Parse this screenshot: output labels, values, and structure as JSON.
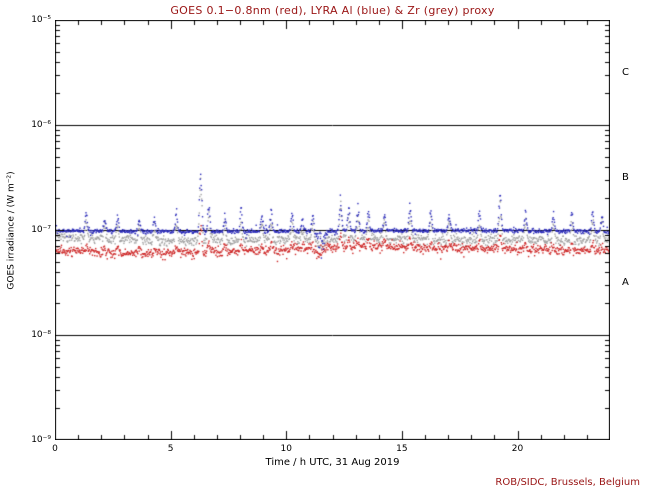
{
  "footer": {
    "text": "ROB/SIDC, Brussels, Belgium"
  },
  "colors": {
    "title_text": "#9a1515",
    "footer_text": "#9a1515",
    "axis": "#000000",
    "goes_red": "#cc2222",
    "lyra_al_blue": "#2929b8",
    "lyra_zr_grey": "#a0a0a0"
  },
  "chart_data": {
    "type": "scatter",
    "title": "GOES 0.1−0.8nm (red), LYRA Al (blue) & Zr (grey) proxy",
    "xlabel": "Time / h UTC, 31 Aug 2019",
    "ylabel": "GOES irradiance / (W m⁻²)",
    "xlim": [
      0,
      24
    ],
    "ylim_log10": [
      -9,
      -5
    ],
    "grid": false,
    "legend": "encoded in title colors",
    "x_major_ticks": [
      {
        "value": 0,
        "label": "0"
      },
      {
        "value": 5,
        "label": "5"
      },
      {
        "value": 10,
        "label": "10"
      },
      {
        "value": 15,
        "label": "15"
      },
      {
        "value": 20,
        "label": "20"
      }
    ],
    "y_ticks": [
      {
        "value": 1e-05,
        "label": "10⁻⁵"
      },
      {
        "value": 1e-06,
        "label": "10⁻⁶"
      },
      {
        "value": 1e-07,
        "label": "10⁻⁷"
      },
      {
        "value": 1e-08,
        "label": "10⁻⁸"
      },
      {
        "value": 1e-09,
        "label": "10⁻⁹"
      }
    ],
    "hlines": [
      1e-06,
      1e-07,
      1e-08
    ],
    "class_labels": [
      {
        "label": "C",
        "value": 3.16e-06
      },
      {
        "label": "B",
        "value": 3.16e-07
      },
      {
        "label": "A",
        "value": 3.16e-08
      }
    ],
    "spike_width_h": 0.06,
    "spikes": [
      {
        "t": 1.35,
        "peak": 1.5e-07
      },
      {
        "t": 2.15,
        "peak": 1.35e-07
      },
      {
        "t": 2.7,
        "peak": 1.45e-07
      },
      {
        "t": 3.65,
        "peak": 1.3e-07
      },
      {
        "t": 4.3,
        "peak": 1.4e-07
      },
      {
        "t": 5.25,
        "peak": 1.55e-07
      },
      {
        "t": 6.3,
        "peak": 3.7e-07
      },
      {
        "t": 6.65,
        "peak": 1.9e-07
      },
      {
        "t": 7.35,
        "peak": 1.5e-07
      },
      {
        "t": 8.05,
        "peak": 1.7e-07
      },
      {
        "t": 8.95,
        "peak": 1.5e-07
      },
      {
        "t": 9.35,
        "peak": 1.65e-07
      },
      {
        "t": 10.25,
        "peak": 1.55e-07
      },
      {
        "t": 10.7,
        "peak": 1.35e-07
      },
      {
        "t": 11.15,
        "peak": 1.5e-07
      },
      {
        "t": 12.35,
        "peak": 2.2e-07
      },
      {
        "t": 12.7,
        "peak": 1.7e-07
      },
      {
        "t": 13.1,
        "peak": 1.75e-07
      },
      {
        "t": 13.55,
        "peak": 1.6e-07
      },
      {
        "t": 14.25,
        "peak": 1.5e-07
      },
      {
        "t": 15.35,
        "peak": 1.85e-07
      },
      {
        "t": 16.25,
        "peak": 1.6e-07
      },
      {
        "t": 17.05,
        "peak": 1.5e-07
      },
      {
        "t": 18.35,
        "peak": 1.55e-07
      },
      {
        "t": 19.25,
        "peak": 2.25e-07
      },
      {
        "t": 20.35,
        "peak": 1.55e-07
      },
      {
        "t": 21.55,
        "peak": 1.5e-07
      },
      {
        "t": 22.35,
        "peak": 1.6e-07
      },
      {
        "t": 23.25,
        "peak": 1.65e-07
      },
      {
        "t": 23.65,
        "peak": 1.5e-07
      }
    ],
    "series": [
      {
        "name": "LYRA Zr proxy",
        "color": "#a0a0a0",
        "noise": 0.055,
        "spike_response": 0.85,
        "baseline": [
          [
            0,
            8.6e-08
          ],
          [
            2,
            8.2e-08
          ],
          [
            5,
            7.9e-08
          ],
          [
            9,
            7.9e-08
          ],
          [
            13,
            8.3e-08
          ],
          [
            17,
            8.1e-08
          ],
          [
            21,
            8e-08
          ],
          [
            24,
            7.9e-08
          ]
        ],
        "dips": [
          {
            "t": 11.5,
            "w": 0.2,
            "depth": 0.2
          }
        ]
      },
      {
        "name": "GOES 0.1-0.8nm",
        "color": "#cc2222",
        "noise": 0.05,
        "spike_response": 0.2,
        "baseline": [
          [
            0,
            6.4e-08
          ],
          [
            3,
            6e-08
          ],
          [
            6,
            6.1e-08
          ],
          [
            9,
            6.3e-08
          ],
          [
            12,
            6.8e-08
          ],
          [
            13.5,
            7e-08
          ],
          [
            16,
            6.7e-08
          ],
          [
            20,
            6.6e-08
          ],
          [
            24,
            6.3e-08
          ]
        ],
        "dips": [
          {
            "t": 11.4,
            "w": 0.3,
            "depth": 0.18
          }
        ]
      },
      {
        "name": "LYRA Al proxy",
        "color": "#2929b8",
        "noise": 0.022,
        "spike_response": 1.0,
        "baseline": [
          [
            0,
            9.8e-08
          ],
          [
            6,
            9.6e-08
          ],
          [
            12,
            9.8e-08
          ],
          [
            18,
            9.9e-08
          ],
          [
            24,
            9.6e-08
          ]
        ],
        "dips": [
          {
            "t": 11.5,
            "w": 0.2,
            "depth": 0.45
          }
        ]
      }
    ]
  }
}
